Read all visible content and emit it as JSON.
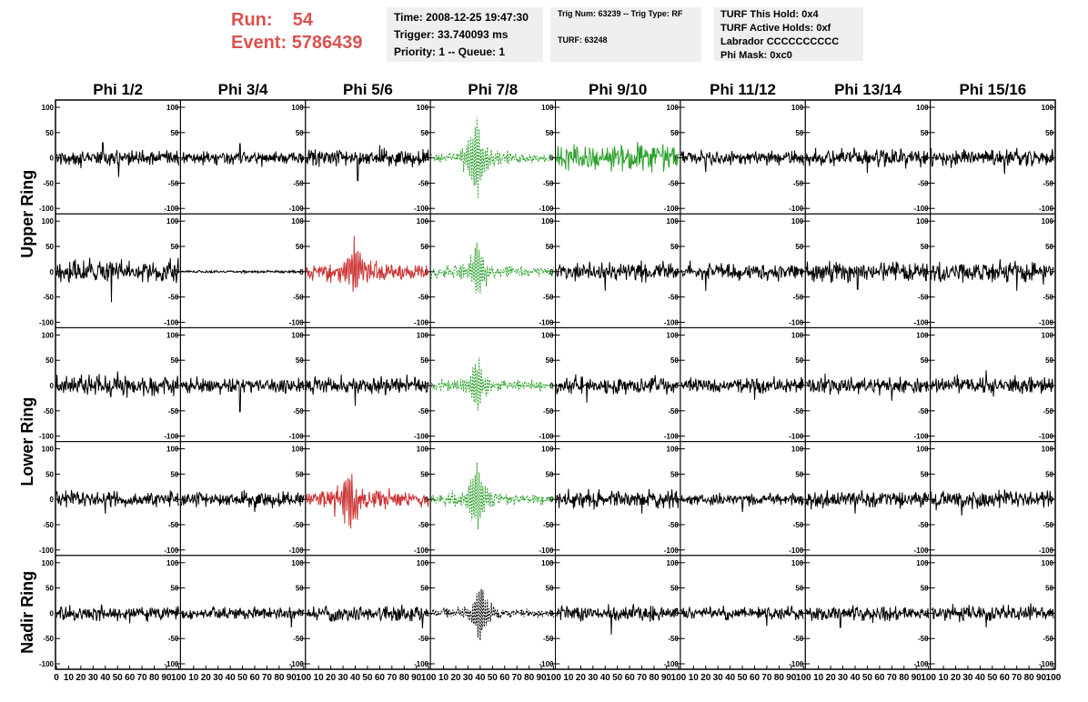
{
  "header": {
    "run_label": "Run:",
    "run_value": "54",
    "event_label": "Event:",
    "event_value": "5786439",
    "box1": [
      "Time: 2008-12-25 19:47:30",
      "Trigger: 33.740093 ms",
      "Priority: 1 -- Queue: 1"
    ],
    "box2": [
      "Trig Num: 63239 -- Trig Type: RF",
      "TURF: 63248"
    ],
    "box3": [
      "TURF This Hold: 0x4",
      "TURF Active Holds: 0xf",
      "Labrador CCCCCCCCCC",
      "Phi Mask: 0xc0"
    ],
    "colors": {
      "header_text": "#d9534f",
      "info_box_bg": "#efefef"
    }
  },
  "chart_data": {
    "type": "line",
    "columns": [
      "Phi 1/2",
      "Phi 3/4",
      "Phi 5/6",
      "Phi 7/8",
      "Phi 9/10",
      "Phi 11/12",
      "Phi 13/14",
      "Phi 15/16"
    ],
    "rows": [
      "Upper Ring",
      "Lower Ring",
      "Nadir Ring"
    ],
    "ylim": [
      -100,
      100
    ],
    "xlim": [
      0,
      100
    ],
    "y_ticks": [
      -100,
      -50,
      0,
      50,
      100
    ],
    "x_ticks": [
      "0",
      "10",
      "20",
      "30",
      "40",
      "50",
      "60",
      "70",
      "80",
      "90",
      "100"
    ],
    "colors": {
      "black": "#000000",
      "green": "#2ca02c",
      "red": "#cc3333"
    },
    "panels": [
      {
        "row": 1,
        "col": 1,
        "color": "black",
        "amp": 14,
        "spikes": [
          [
            38,
            30
          ],
          [
            51,
            -38
          ]
        ]
      },
      {
        "row": 1,
        "col": 2,
        "color": "black",
        "amp": 12,
        "spikes": [
          [
            48,
            28
          ],
          [
            66,
            -18
          ]
        ]
      },
      {
        "row": 1,
        "col": 3,
        "color": "black",
        "amp": 15,
        "spikes": [
          [
            42,
            -45
          ],
          [
            60,
            25
          ]
        ]
      },
      {
        "row": 1,
        "col": 4,
        "color": "green",
        "dashed": true,
        "amp": 12,
        "pulse": {
          "at": 37,
          "amp": 85
        }
      },
      {
        "row": 1,
        "col": 5,
        "color": "green",
        "amp": 24,
        "spikes": []
      },
      {
        "row": 1,
        "col": 6,
        "color": "black",
        "amp": 13,
        "spikes": [
          [
            20,
            -28
          ]
        ]
      },
      {
        "row": 1,
        "col": 7,
        "color": "black",
        "amp": 15,
        "spikes": [
          [
            50,
            -30
          ]
        ]
      },
      {
        "row": 1,
        "col": 8,
        "color": "black",
        "amp": 14,
        "spikes": [
          [
            60,
            -32
          ]
        ]
      },
      {
        "row": 2,
        "col": 1,
        "color": "black",
        "amp": 20,
        "spikes": [
          [
            45,
            -60
          ]
        ]
      },
      {
        "row": 2,
        "col": 2,
        "color": "black",
        "amp": 2,
        "spikes": []
      },
      {
        "row": 2,
        "col": 3,
        "color": "red",
        "amp": 18,
        "pulse": {
          "at": 40,
          "amp": 55
        }
      },
      {
        "row": 2,
        "col": 4,
        "color": "green",
        "dashed": true,
        "amp": 14,
        "pulse": {
          "at": 37,
          "amp": 65
        }
      },
      {
        "row": 2,
        "col": 5,
        "color": "black",
        "amp": 16,
        "spikes": [
          [
            40,
            -38
          ]
        ]
      },
      {
        "row": 2,
        "col": 6,
        "color": "black",
        "amp": 15,
        "spikes": [
          [
            20,
            -38
          ]
        ]
      },
      {
        "row": 2,
        "col": 7,
        "color": "black",
        "amp": 16,
        "spikes": [
          [
            42,
            -35
          ]
        ]
      },
      {
        "row": 2,
        "col": 8,
        "color": "black",
        "amp": 18,
        "spikes": [
          [
            70,
            -38
          ]
        ]
      },
      {
        "row": 3,
        "col": 1,
        "color": "black",
        "amp": 16,
        "spikes": [
          [
            50,
            28
          ]
        ]
      },
      {
        "row": 3,
        "col": 2,
        "color": "black",
        "amp": 13,
        "spikes": [
          [
            48,
            -52
          ]
        ]
      },
      {
        "row": 3,
        "col": 3,
        "color": "black",
        "amp": 16,
        "spikes": [
          [
            40,
            -40
          ]
        ]
      },
      {
        "row": 3,
        "col": 4,
        "color": "green",
        "dashed": true,
        "amp": 12,
        "pulse": {
          "at": 37,
          "amp": 55
        }
      },
      {
        "row": 3,
        "col": 5,
        "color": "black",
        "amp": 15,
        "spikes": [
          [
            25,
            -34
          ]
        ]
      },
      {
        "row": 3,
        "col": 6,
        "color": "black",
        "amp": 13,
        "spikes": [
          [
            60,
            -28
          ]
        ]
      },
      {
        "row": 3,
        "col": 7,
        "color": "black",
        "amp": 15,
        "spikes": [
          [
            70,
            -30
          ]
        ]
      },
      {
        "row": 3,
        "col": 8,
        "color": "black",
        "amp": 15,
        "spikes": [
          [
            45,
            30
          ]
        ]
      },
      {
        "row": 4,
        "col": 1,
        "color": "black",
        "amp": 14,
        "spikes": [
          [
            40,
            -28
          ]
        ]
      },
      {
        "row": 4,
        "col": 2,
        "color": "black",
        "amp": 14,
        "spikes": [
          [
            60,
            -25
          ]
        ]
      },
      {
        "row": 4,
        "col": 3,
        "color": "red",
        "amp": 20,
        "pulse": {
          "at": 35,
          "amp": 60
        }
      },
      {
        "row": 4,
        "col": 4,
        "color": "green",
        "dashed": true,
        "amp": 14,
        "pulse": {
          "at": 37,
          "amp": 70
        }
      },
      {
        "row": 4,
        "col": 5,
        "color": "black",
        "amp": 15,
        "spikes": [
          [
            70,
            -28
          ]
        ]
      },
      {
        "row": 4,
        "col": 6,
        "color": "black",
        "amp": 10,
        "spikes": [
          [
            50,
            -25
          ]
        ]
      },
      {
        "row": 4,
        "col": 7,
        "color": "black",
        "amp": 14,
        "spikes": [
          [
            40,
            -28
          ]
        ]
      },
      {
        "row": 4,
        "col": 8,
        "color": "black",
        "amp": 15,
        "spikes": [
          [
            25,
            -32
          ]
        ]
      },
      {
        "row": 5,
        "col": 1,
        "color": "black",
        "amp": 13,
        "spikes": [
          [
            60,
            -20
          ]
        ]
      },
      {
        "row": 5,
        "col": 2,
        "color": "black",
        "amp": 11,
        "spikes": [
          [
            90,
            -28
          ]
        ]
      },
      {
        "row": 5,
        "col": 3,
        "color": "black",
        "amp": 14,
        "spikes": [
          [
            95,
            -30
          ]
        ]
      },
      {
        "row": 5,
        "col": 4,
        "color": "black",
        "dashed": true,
        "amp": 10,
        "pulse": {
          "at": 40,
          "amp": 60
        }
      },
      {
        "row": 5,
        "col": 5,
        "color": "black",
        "amp": 13,
        "spikes": [
          [
            45,
            -42
          ]
        ]
      },
      {
        "row": 5,
        "col": 6,
        "color": "black",
        "amp": 12,
        "spikes": [
          [
            70,
            -25
          ]
        ]
      },
      {
        "row": 5,
        "col": 7,
        "color": "black",
        "amp": 13,
        "spikes": [
          [
            28,
            -28
          ]
        ]
      },
      {
        "row": 5,
        "col": 8,
        "color": "black",
        "amp": 14,
        "spikes": [
          [
            45,
            -28
          ]
        ]
      }
    ]
  }
}
